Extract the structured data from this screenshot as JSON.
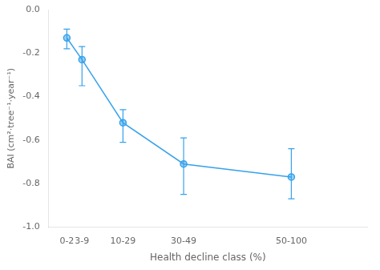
{
  "chart_data": {
    "type": "line",
    "x": [
      1,
      6,
      19.5,
      39.5,
      75
    ],
    "values": [
      -0.13,
      -0.23,
      -0.52,
      -0.71,
      -0.77
    ],
    "error_lower": [
      0.05,
      0.12,
      0.09,
      0.14,
      0.1
    ],
    "error_upper": [
      0.04,
      0.06,
      0.06,
      0.12,
      0.13
    ],
    "xlabel": "Health decline class (%)",
    "ylabel": "BAI (cm²·tree⁻¹·year⁻¹)",
    "xlim": [
      -5,
      100
    ],
    "xticks": [
      {
        "value": 1,
        "label": "0-2"
      },
      {
        "value": 6,
        "label": "3-9"
      },
      {
        "value": 19.5,
        "label": "10-29"
      },
      {
        "value": 39.5,
        "label": "30-49"
      },
      {
        "value": 75,
        "label": "50-100"
      }
    ],
    "ylim": [
      -1.0,
      0.0
    ],
    "yticks": [
      {
        "value": 0.0,
        "label": "0.0"
      },
      -0.2,
      -0.4,
      -0.6,
      -0.8,
      {
        "value": -1.0,
        "label": "-1.0"
      }
    ],
    "grid": false,
    "marker": "circle",
    "line_style": "solid"
  }
}
